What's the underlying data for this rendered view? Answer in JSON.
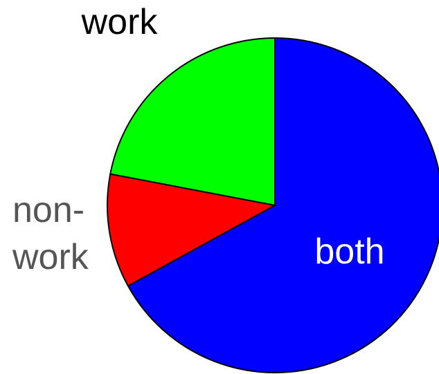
{
  "chart_data": {
    "type": "pie",
    "categories": [
      "both",
      "non-work",
      "work"
    ],
    "values": [
      67,
      11,
      22
    ],
    "colors": [
      "#0000ff",
      "#ff0000",
      "#00ff00"
    ],
    "label_colors": [
      "#ffffff",
      "#555555",
      "#000000"
    ]
  }
}
